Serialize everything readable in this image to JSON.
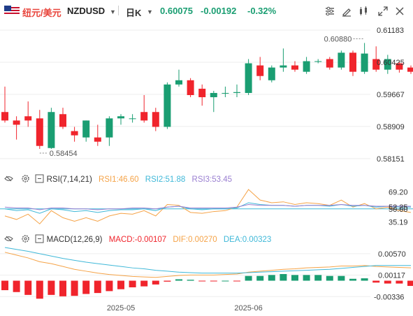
{
  "header": {
    "pair_name": "纽元/美元",
    "pair_code": "NZDUSD",
    "period": "日K",
    "last_price": "0.60075",
    "change": "-0.00192",
    "change_pct": "-0.32%",
    "icons": [
      "flag-icon",
      "caret-down-icon",
      "indicator-settings-icon",
      "draw-tool-icon",
      "compare-icon",
      "expand-icon",
      "close-icon"
    ]
  },
  "colors": {
    "up": "#1a9e72",
    "down": "#f0242c",
    "axis_text": "#555555",
    "rsi1": "#f5a347",
    "rsi2": "#3fb8d8",
    "rsi3": "#9a7fd1",
    "dif": "#f5a347",
    "dea": "#3fb8d8",
    "rsi_ref": "#3fb8d8"
  },
  "chart_data": [
    {
      "type": "candlestick",
      "y_ticks": [
        "0.61183",
        "0.60425",
        "0.59667",
        "0.58909",
        "0.58151"
      ],
      "ylim": [
        0.58,
        0.613
      ],
      "x_ticks": [
        "2025-05",
        "2025-06"
      ],
      "annotations": {
        "high": "0.60880",
        "low": "0.58454"
      },
      "candles": [
        {
          "o": 0.5925,
          "h": 0.5985,
          "l": 0.59,
          "c": 0.5905
        },
        {
          "o": 0.5905,
          "h": 0.5915,
          "l": 0.586,
          "c": 0.5895
        },
        {
          "o": 0.5915,
          "h": 0.595,
          "l": 0.589,
          "c": 0.5905
        },
        {
          "o": 0.591,
          "h": 0.593,
          "l": 0.5838,
          "c": 0.5845
        },
        {
          "o": 0.584,
          "h": 0.5935,
          "l": 0.5838,
          "c": 0.5925
        },
        {
          "o": 0.592,
          "h": 0.5935,
          "l": 0.5885,
          "c": 0.589
        },
        {
          "o": 0.588,
          "h": 0.589,
          "l": 0.5855,
          "c": 0.587
        },
        {
          "o": 0.5865,
          "h": 0.5905,
          "l": 0.5855,
          "c": 0.5905
        },
        {
          "o": 0.5865,
          "h": 0.5895,
          "l": 0.5845,
          "c": 0.5855
        },
        {
          "o": 0.5865,
          "h": 0.5915,
          "l": 0.5845,
          "c": 0.591
        },
        {
          "o": 0.591,
          "h": 0.592,
          "l": 0.5895,
          "c": 0.5915
        },
        {
          "o": 0.591,
          "h": 0.592,
          "l": 0.59,
          "c": 0.591
        },
        {
          "o": 0.5925,
          "h": 0.5965,
          "l": 0.59,
          "c": 0.5905
        },
        {
          "o": 0.5925,
          "h": 0.5935,
          "l": 0.588,
          "c": 0.589
        },
        {
          "o": 0.589,
          "h": 0.5995,
          "l": 0.5885,
          "c": 0.599
        },
        {
          "o": 0.599,
          "h": 0.6025,
          "l": 0.5985,
          "c": 0.6
        },
        {
          "o": 0.6,
          "h": 0.6005,
          "l": 0.596,
          "c": 0.5965
        },
        {
          "o": 0.598,
          "h": 0.599,
          "l": 0.594,
          "c": 0.596
        },
        {
          "o": 0.596,
          "h": 0.5975,
          "l": 0.5925,
          "c": 0.597
        },
        {
          "o": 0.597,
          "h": 0.5985,
          "l": 0.596,
          "c": 0.597
        },
        {
          "o": 0.597,
          "h": 0.599,
          "l": 0.596,
          "c": 0.5972
        },
        {
          "o": 0.597,
          "h": 0.605,
          "l": 0.5965,
          "c": 0.604
        },
        {
          "o": 0.6035,
          "h": 0.6055,
          "l": 0.6,
          "c": 0.601
        },
        {
          "o": 0.6,
          "h": 0.6035,
          "l": 0.5995,
          "c": 0.603
        },
        {
          "o": 0.603,
          "h": 0.6075,
          "l": 0.602,
          "c": 0.6035
        },
        {
          "o": 0.6035,
          "h": 0.6045,
          "l": 0.602,
          "c": 0.6025
        },
        {
          "o": 0.602,
          "h": 0.6055,
          "l": 0.6015,
          "c": 0.6045
        },
        {
          "o": 0.6045,
          "h": 0.605,
          "l": 0.604,
          "c": 0.6045
        },
        {
          "o": 0.605,
          "h": 0.6055,
          "l": 0.6025,
          "c": 0.603
        },
        {
          "o": 0.603,
          "h": 0.607,
          "l": 0.6025,
          "c": 0.6065
        },
        {
          "o": 0.6065,
          "h": 0.607,
          "l": 0.601,
          "c": 0.602
        },
        {
          "o": 0.602,
          "h": 0.6088,
          "l": 0.6015,
          "c": 0.6063
        },
        {
          "o": 0.605,
          "h": 0.608,
          "l": 0.602,
          "c": 0.6025
        },
        {
          "o": 0.6025,
          "h": 0.606,
          "l": 0.6015,
          "c": 0.605
        },
        {
          "o": 0.604,
          "h": 0.6045,
          "l": 0.6018,
          "c": 0.6025
        },
        {
          "o": 0.603,
          "h": 0.6035,
          "l": 0.6015,
          "c": 0.602
        }
      ]
    },
    {
      "type": "line",
      "title": "RSI(7,14,21)",
      "legend": [
        {
          "label": "RSI1:46.60",
          "color": "#f5a347"
        },
        {
          "label": "RSI2:51.88",
          "color": "#3fb8d8"
        },
        {
          "label": "RSI3:53.45",
          "color": "#9a7fd1"
        }
      ],
      "y_ticks": [
        "69.20",
        "52.25",
        "50.00",
        "35.19"
      ],
      "ylim": [
        30,
        76
      ],
      "reference_line": 50,
      "series": [
        {
          "name": "RSI1",
          "values": [
            42,
            38,
            44,
            33,
            48,
            40,
            36,
            40,
            36,
            42,
            45,
            44,
            48,
            42,
            55,
            54,
            46,
            45,
            47,
            48,
            52,
            72,
            60,
            57,
            58,
            55,
            57,
            56,
            54,
            60,
            52,
            56,
            50,
            52,
            48,
            46
          ]
        },
        {
          "name": "RSI2",
          "values": [
            50,
            48,
            49,
            45,
            50,
            49,
            47,
            48,
            46,
            48,
            49,
            49,
            50,
            48,
            52,
            53,
            50,
            49,
            50,
            50,
            51,
            57,
            55,
            54,
            54,
            53,
            54,
            54,
            53,
            55,
            53,
            54,
            52,
            53,
            52,
            52
          ]
        },
        {
          "name": "RSI3",
          "values": [
            52,
            51,
            51,
            49,
            51,
            51,
            50,
            50,
            49,
            50,
            50,
            51,
            51,
            50,
            52,
            53,
            51,
            51,
            51,
            51,
            52,
            55,
            54,
            54,
            54,
            53,
            54,
            54,
            54,
            55,
            54,
            54,
            53,
            53,
            53,
            53
          ]
        }
      ]
    },
    {
      "type": "bar",
      "title": "MACD(12,26,9)",
      "legend": [
        {
          "label": "MACD:-0.00107",
          "color": "#f0242c"
        },
        {
          "label": "DIF:0.00270",
          "color": "#f5a347"
        },
        {
          "label": "DEA:0.00323",
          "color": "#3fb8d8"
        }
      ],
      "y_ticks": [
        "0.00570",
        "0.00117",
        "-0.00336"
      ],
      "ylim": [
        -0.0045,
        0.0073
      ],
      "x_ticks": [
        "2025-05",
        "2025-06"
      ],
      "series": [
        {
          "name": "MACD",
          "values": [
            -0.002,
            -0.0024,
            -0.003,
            -0.0038,
            -0.003,
            -0.0033,
            -0.0032,
            -0.0028,
            -0.0026,
            -0.0022,
            -0.0018,
            -0.0014,
            -0.0012,
            -0.0008,
            -0.0002,
            0.0003,
            0.0002,
            -0.0001,
            -0.0001,
            0.0,
            -0.0001,
            0.001,
            0.001,
            0.0012,
            0.0014,
            0.0012,
            0.0012,
            0.0012,
            0.001,
            0.001,
            0.0004,
            0.0005,
            -0.0004,
            -0.0006,
            -0.0006,
            -0.0011
          ]
        },
        {
          "name": "DIF",
          "values": [
            0.006,
            0.0054,
            0.0048,
            0.004,
            0.0036,
            0.003,
            0.0024,
            0.002,
            0.0016,
            0.0013,
            0.0011,
            0.0009,
            0.0008,
            0.0007,
            0.0009,
            0.0011,
            0.0012,
            0.0012,
            0.0012,
            0.0013,
            0.0014,
            0.0018,
            0.002,
            0.0022,
            0.0024,
            0.0025,
            0.0027,
            0.0028,
            0.0029,
            0.0031,
            0.0031,
            0.0032,
            0.003,
            0.0029,
            0.0028,
            0.0027
          ]
        },
        {
          "name": "DEA",
          "values": [
            0.007,
            0.0066,
            0.0062,
            0.0057,
            0.0052,
            0.0047,
            0.0043,
            0.0039,
            0.0036,
            0.0033,
            0.003,
            0.0027,
            0.0025,
            0.0022,
            0.002,
            0.0018,
            0.0017,
            0.0016,
            0.0016,
            0.0016,
            0.0016,
            0.0017,
            0.0018,
            0.0019,
            0.002,
            0.0021,
            0.0022,
            0.0023,
            0.0024,
            0.0026,
            0.0028,
            0.003,
            0.0032,
            0.0032,
            0.0032,
            0.0032
          ]
        }
      ]
    }
  ]
}
